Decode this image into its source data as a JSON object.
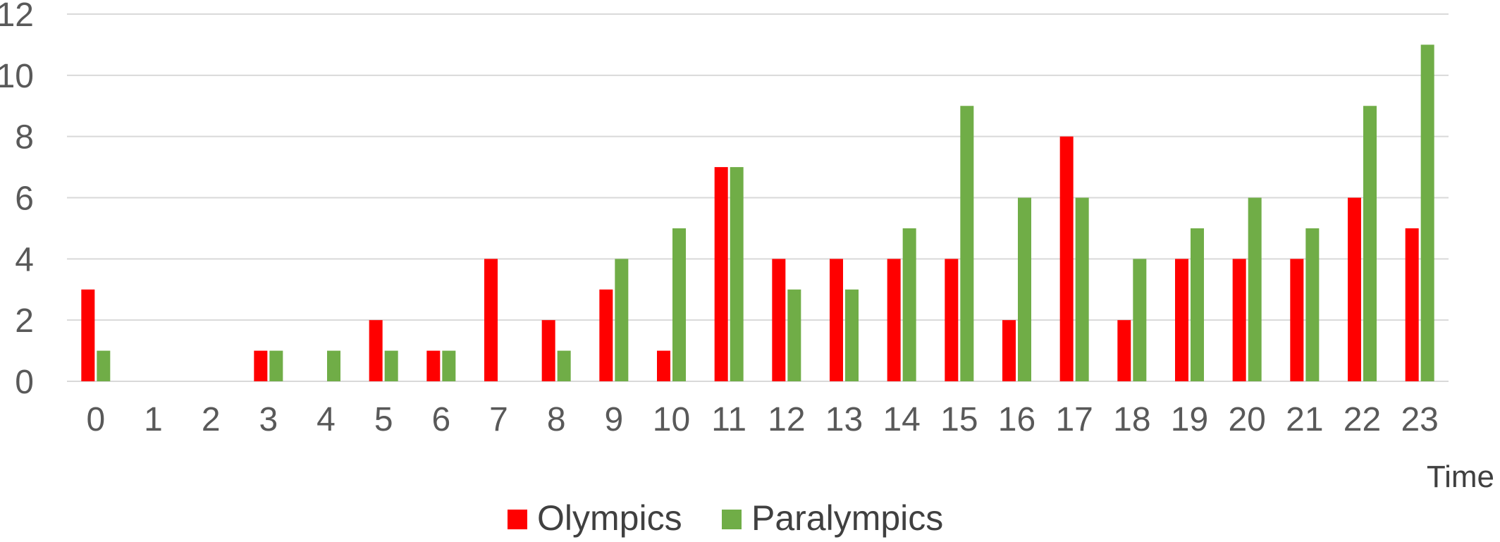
{
  "chart_data": {
    "type": "bar",
    "title": "",
    "xlabel": "Time",
    "ylabel": "",
    "ylim": [
      0,
      12
    ],
    "yticks": [
      "0",
      "2",
      "4",
      "6",
      "8",
      "10",
      "12"
    ],
    "grid": true,
    "legend_position": "bottom",
    "categories": [
      "0",
      "1",
      "2",
      "3",
      "4",
      "5",
      "6",
      "7",
      "8",
      "9",
      "10",
      "11",
      "12",
      "13",
      "14",
      "15",
      "16",
      "17",
      "18",
      "19",
      "20",
      "21",
      "22",
      "23"
    ],
    "series": [
      {
        "name": "Olympics",
        "color": "#ff0000",
        "values": [
          3,
          0,
          0,
          1,
          0,
          2,
          1,
          4,
          2,
          3,
          1,
          7,
          4,
          4,
          4,
          4,
          2,
          8,
          2,
          4,
          4,
          4,
          6,
          5
        ]
      },
      {
        "name": "Paralympics",
        "color": "#70ad47",
        "values": [
          1,
          0,
          0,
          1,
          1,
          1,
          1,
          0,
          1,
          4,
          5,
          7,
          3,
          3,
          5,
          9,
          6,
          6,
          4,
          5,
          6,
          5,
          9,
          11
        ]
      }
    ]
  }
}
